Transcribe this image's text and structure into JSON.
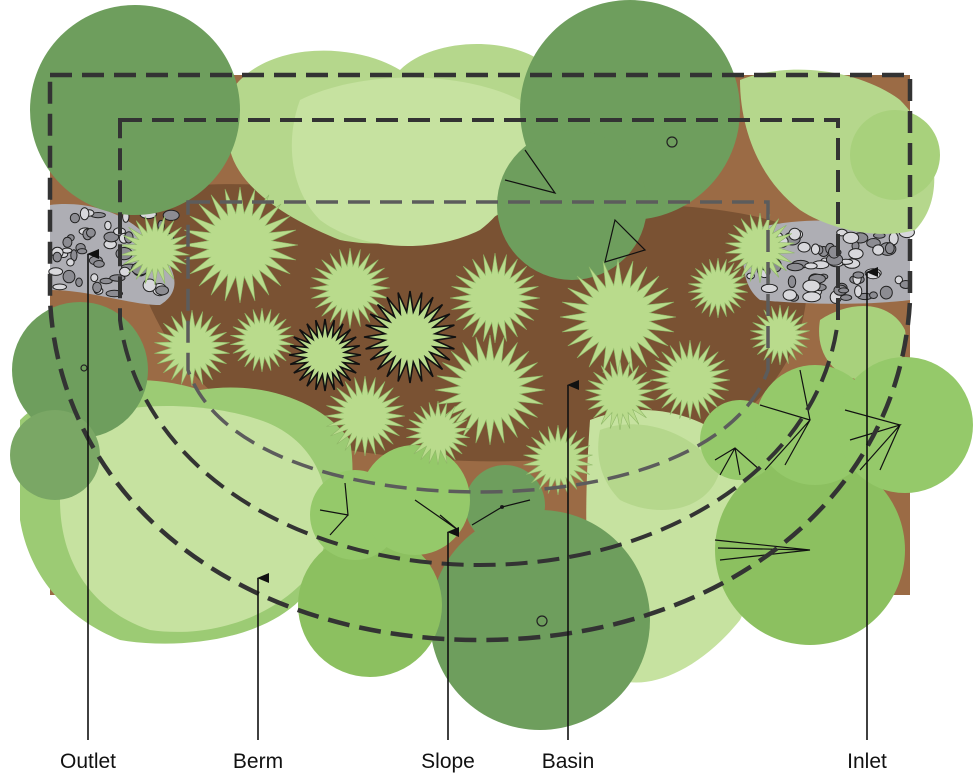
{
  "labels": {
    "outlet": "Outlet",
    "berm": "Berm",
    "slope": "Slope",
    "basin": "Basin",
    "inlet": "Inlet"
  },
  "colors": {
    "soil": "#8a5e3c",
    "soil_light": "#a97c55",
    "tree_dark": "#6f9f5e",
    "tree_mid": "#7fb25e",
    "shrub_light": "#b7d88f",
    "shrub_pale": "#c9e2a0",
    "grass_fill": "#b9db8c",
    "rock": "#9c9ca2",
    "dash": "#333333"
  }
}
